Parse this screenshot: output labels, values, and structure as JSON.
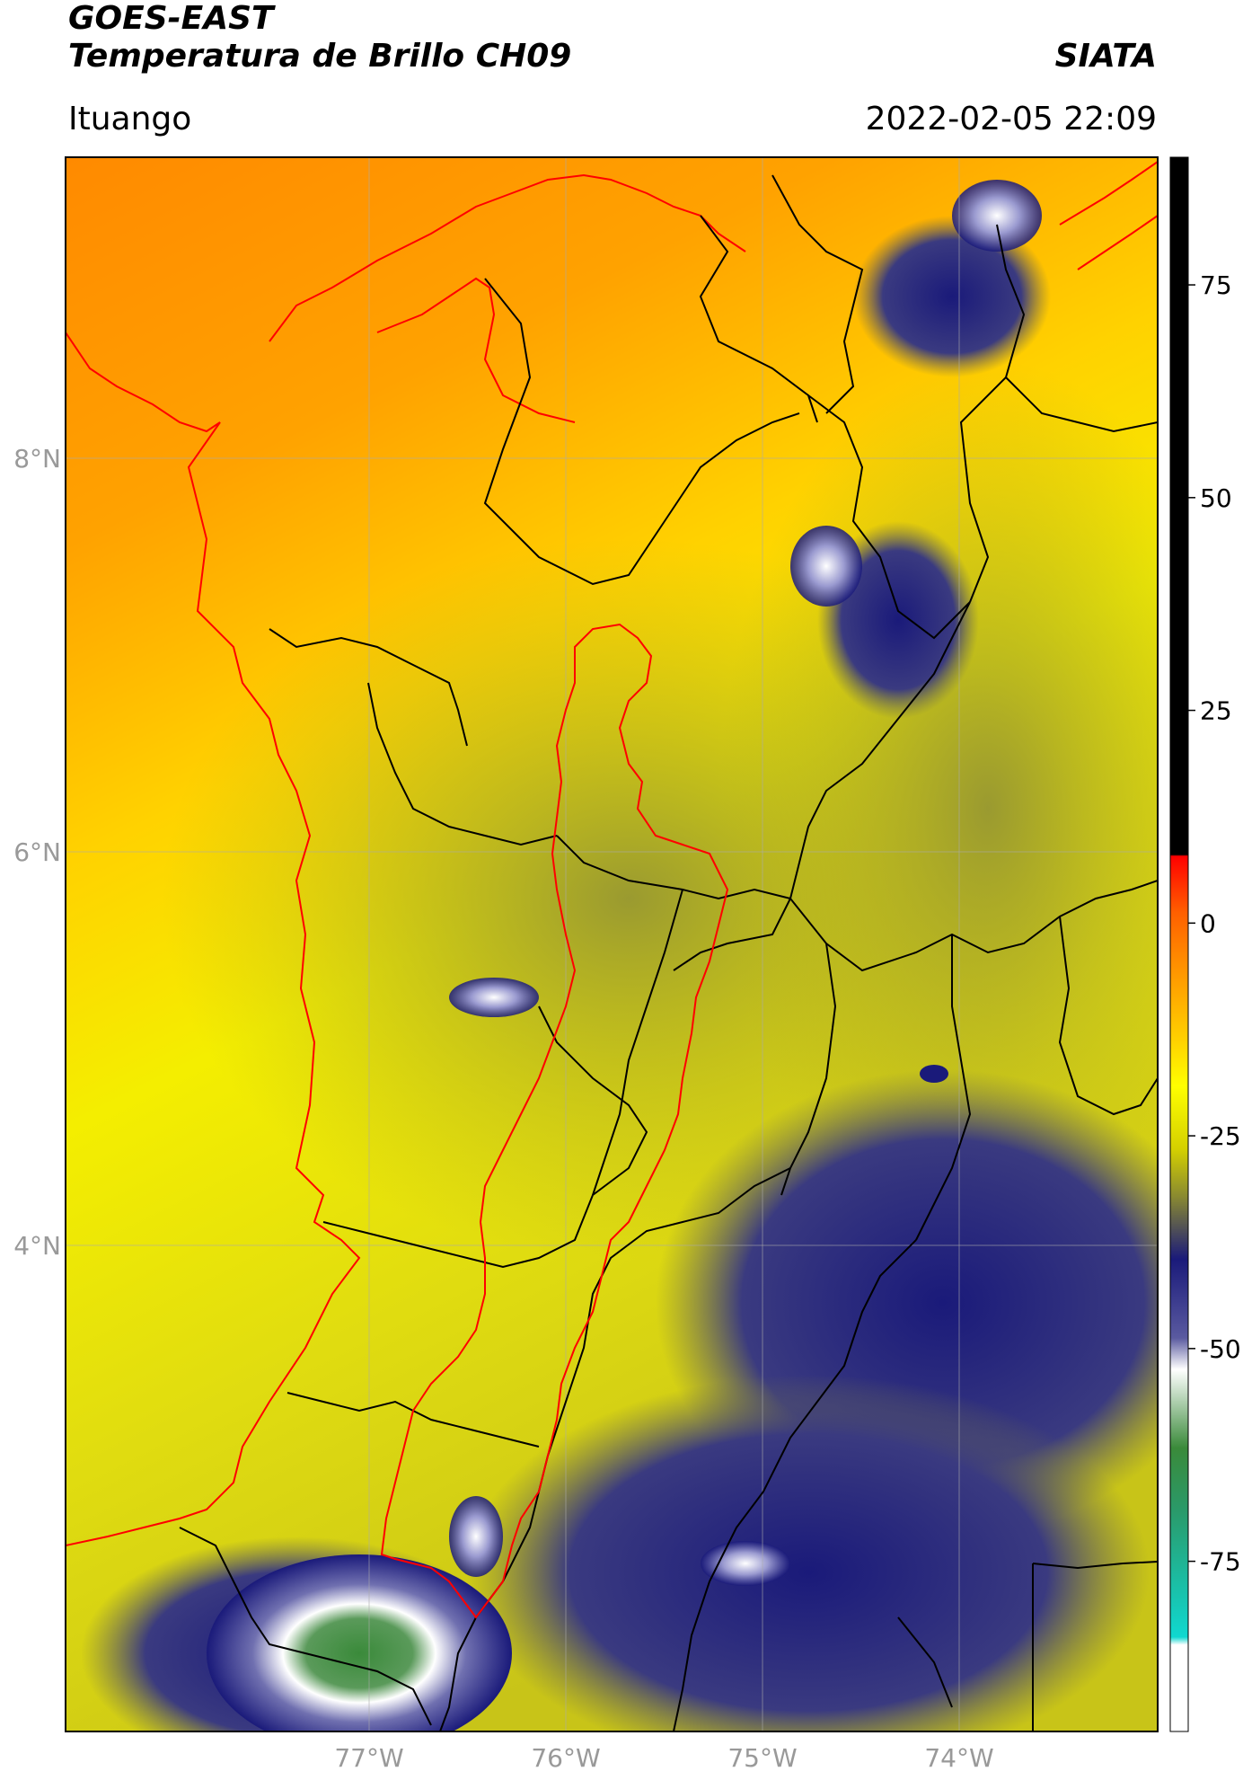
{
  "header": {
    "satellite": "GOES-EAST",
    "product": "Temperatura de Brillo CH09",
    "org": "SIATA",
    "region": "Ituango",
    "timestamp": "2022-02-05 22:09"
  },
  "axes": {
    "lat_labels": [
      "8°N",
      "6°N",
      "4°N"
    ],
    "lon_labels": [
      "77°W",
      "76°W",
      "75°W",
      "74°W"
    ]
  },
  "colorbar": {
    "ticks": [
      "75",
      "50",
      "25",
      "0",
      "-25",
      "-50",
      "-75"
    ],
    "range": [
      -95,
      90
    ],
    "colors": {
      "cold_min": "#ffffff",
      "cyan": "#10d8d0",
      "green": "#3a8a3a",
      "white": "#ffffff",
      "navy": "#1a1a7a",
      "olive": "#9a9a28",
      "yellow": "#ffff00",
      "orange": "#ff8a00",
      "red": "#ff0000",
      "black": "#000000"
    }
  },
  "colors": {
    "outline_red": "#ff0000",
    "outline_black": "#000000",
    "grid": "#aaaaaa"
  }
}
